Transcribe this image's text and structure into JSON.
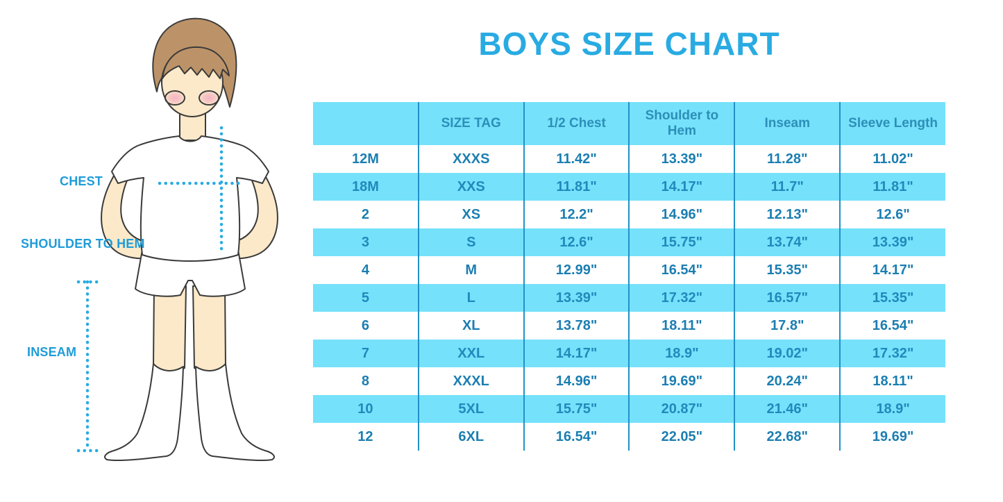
{
  "title": "BOYS SIZE CHART",
  "figure": {
    "description": "cartoon boy in white t-shirt, shorts and knee socks with measurement guides",
    "labels": {
      "chest": "CHEST",
      "shoulder_to_hem": "SHOULDER TO HEM",
      "inseam": "INSEAM"
    }
  },
  "table": {
    "headers": [
      "",
      "SIZE TAG",
      "1/2 Chest",
      "Shoulder to Hem",
      "Inseam",
      "Sleeve Length"
    ],
    "rows": [
      [
        "12M",
        "XXXS",
        "11.42\"",
        "13.39\"",
        "11.28\"",
        "11.02\""
      ],
      [
        "18M",
        "XXS",
        "11.81\"",
        "14.17\"",
        "11.7\"",
        "11.81\""
      ],
      [
        "2",
        "XS",
        "12.2\"",
        "14.96\"",
        "12.13\"",
        "12.6\""
      ],
      [
        "3",
        "S",
        "12.6\"",
        "15.75\"",
        "13.74\"",
        "13.39\""
      ],
      [
        "4",
        "M",
        "12.99\"",
        "16.54\"",
        "15.35\"",
        "14.17\""
      ],
      [
        "5",
        "L",
        "13.39\"",
        "17.32\"",
        "16.57\"",
        "15.35\""
      ],
      [
        "6",
        "XL",
        "13.78\"",
        "18.11\"",
        "17.8\"",
        "16.54\""
      ],
      [
        "7",
        "XXL",
        "14.17\"",
        "18.9\"",
        "19.02\"",
        "17.32\""
      ],
      [
        "8",
        "XXXL",
        "14.96\"",
        "19.69\"",
        "20.24\"",
        "18.11\""
      ],
      [
        "10",
        "5XL",
        "15.75\"",
        "20.87\"",
        "21.46\"",
        "18.9\""
      ],
      [
        "12",
        "6XL",
        "16.54\"",
        "22.05\"",
        "22.68\"",
        "19.69\""
      ]
    ]
  },
  "colors": {
    "title_blue": "#29abe2",
    "label_blue": "#1e9cd9",
    "dotted_line_blue": "#29abe2",
    "table_row_fill_blue": "#76e1fb",
    "table_divider_blue": "#2191c6",
    "header_text_blue": "#2c8fb8",
    "cell_text_on_white": "#1b7eb1",
    "cell_text_on_blue": "#2289bb",
    "hair_brown": "#bc9368",
    "skin_tone": "#fbe9c9",
    "blush_pink": "#f4afc2",
    "outline_dark": "#3a3a3a",
    "background": "#ffffff"
  }
}
